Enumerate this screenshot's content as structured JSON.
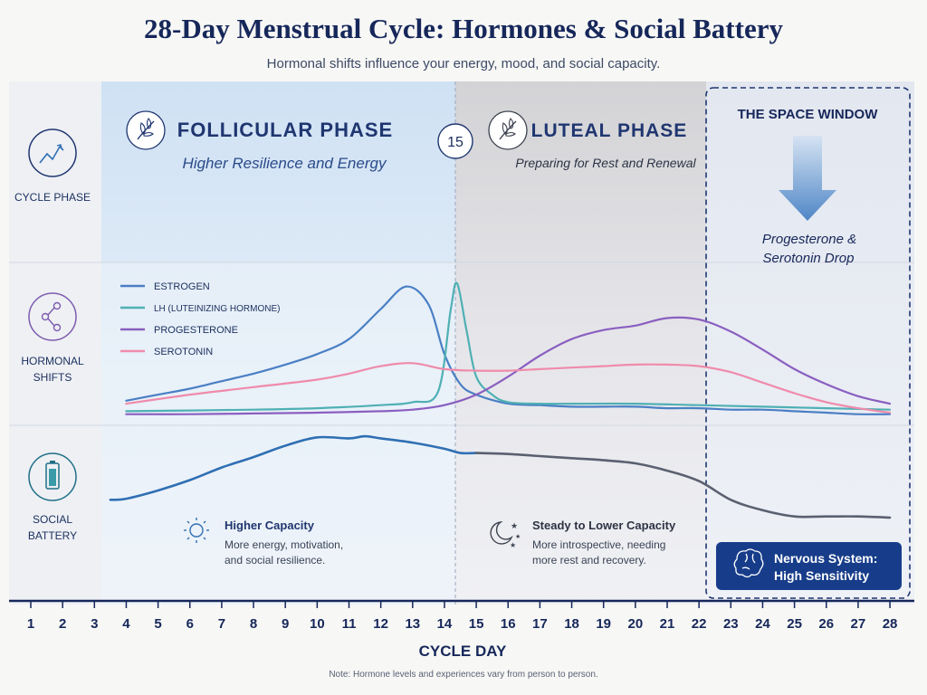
{
  "header": {
    "title": "28-Day Menstrual Cycle: Hormones & Social Battery",
    "subtitle": "Hormonal shifts influence your energy, mood, and social capacity."
  },
  "rows": {
    "cycle_phase": "CYCLE PHASE",
    "hormonal_shifts_1": "HORMONAL",
    "hormonal_shifts_2": "SHIFTS",
    "social_battery_1": "SOCIAL",
    "social_battery_2": "BATTERY"
  },
  "phases": {
    "follicular": {
      "title": "FOLLICULAR PHASE",
      "subtitle": "Higher Resilience and Energy",
      "icon": "leaf-icon"
    },
    "luteal": {
      "title": "LUTEAL PHASE",
      "subtitle": "Preparing for Rest and Renewal",
      "icon": "leaf-icon"
    },
    "ovulation_marker": "15"
  },
  "space_window": {
    "title": "THE SPACE WINDOW",
    "note_1": "Progesterone &",
    "note_2": "Serotonin Drop",
    "badge_1": "Nervous System:",
    "badge_2": "High Sensitivity",
    "badge_icon": "brain-icon"
  },
  "capacity": {
    "higher_title": "Higher Capacity",
    "higher_desc_1": "More energy, motivation,",
    "higher_desc_2": "and social resilience.",
    "higher_icon": "sun-icon",
    "lower_title": "Steady to Lower Capacity",
    "lower_desc_1": "More introspective, needing",
    "lower_desc_2": "more rest and recovery.",
    "lower_icon": "moon-stars-icon"
  },
  "xaxis": {
    "label": "CYCLE DAY"
  },
  "footnote": "Note: Hormone levels and experiences vary from person to person.",
  "colors": {
    "estrogen": "#4a7fc4",
    "lh": "#4fb0b4",
    "progesterone": "#8a5fc0",
    "serotonin": "#ef8bab",
    "battery_high": "#2f6fb3",
    "battery_low": "#5a6070",
    "navy": "#16275a"
  },
  "chart_data": {
    "type": "line",
    "x": [
      1,
      2,
      3,
      4,
      5,
      6,
      7,
      8,
      9,
      10,
      11,
      12,
      13,
      14,
      15,
      16,
      17,
      18,
      19,
      20,
      21,
      22,
      23,
      24,
      25,
      26,
      27,
      28
    ],
    "xlabel": "CYCLE DAY",
    "ylabel": "",
    "hormones": {
      "series": [
        {
          "name": "ESTROGEN",
          "color": "#4a7fc4",
          "points": [
            [
              4,
              14
            ],
            [
              5,
              18
            ],
            [
              6,
              22
            ],
            [
              7,
              27
            ],
            [
              8,
              32
            ],
            [
              9,
              38
            ],
            [
              10,
              45
            ],
            [
              11,
              55
            ],
            [
              12,
              75
            ],
            [
              12.8,
              90
            ],
            [
              13.5,
              78
            ],
            [
              14,
              45
            ],
            [
              14.5,
              25
            ],
            [
              15,
              18
            ],
            [
              16,
              12
            ],
            [
              17,
              11
            ],
            [
              18,
              10
            ],
            [
              19,
              10
            ],
            [
              20,
              10
            ],
            [
              21,
              9
            ],
            [
              22,
              9
            ],
            [
              23,
              8
            ],
            [
              24,
              8
            ],
            [
              25,
              7
            ],
            [
              26,
              6
            ],
            [
              27,
              5
            ],
            [
              28,
              5
            ]
          ]
        },
        {
          "name": "LH (LUTEINIZING HORMONE)",
          "color": "#4fb0b4",
          "points": [
            [
              4,
              7
            ],
            [
              6,
              7.5
            ],
            [
              8,
              8
            ],
            [
              10,
              9
            ],
            [
              12,
              11
            ],
            [
              13,
              13
            ],
            [
              13.8,
              20
            ],
            [
              14.2,
              75
            ],
            [
              14.4,
              92
            ],
            [
              14.7,
              60
            ],
            [
              15,
              30
            ],
            [
              15.5,
              18
            ],
            [
              16,
              13
            ],
            [
              17,
              12
            ],
            [
              18,
              12
            ],
            [
              20,
              12
            ],
            [
              22,
              11
            ],
            [
              24,
              10
            ],
            [
              26,
              9
            ],
            [
              28,
              8
            ]
          ]
        },
        {
          "name": "PROGESTERONE",
          "color": "#8a5fc0",
          "points": [
            [
              4,
              5
            ],
            [
              6,
              5
            ],
            [
              8,
              5.5
            ],
            [
              10,
              6
            ],
            [
              12,
              7
            ],
            [
              13,
              8
            ],
            [
              14,
              11
            ],
            [
              15,
              18
            ],
            [
              16,
              30
            ],
            [
              17,
              44
            ],
            [
              18,
              55
            ],
            [
              19,
              61
            ],
            [
              20,
              64
            ],
            [
              21,
              69
            ],
            [
              22,
              68
            ],
            [
              23,
              60
            ],
            [
              24,
              48
            ],
            [
              25,
              35
            ],
            [
              26,
              25
            ],
            [
              27,
              17
            ],
            [
              28,
              12
            ]
          ]
        },
        {
          "name": "SEROTONIN",
          "color": "#ef8bab",
          "points": [
            [
              4,
              12
            ],
            [
              6,
              18
            ],
            [
              8,
              23
            ],
            [
              10,
              28
            ],
            [
              11,
              32
            ],
            [
              12,
              37
            ],
            [
              13,
              39
            ],
            [
              14,
              35
            ],
            [
              15,
              34
            ],
            [
              16,
              34
            ],
            [
              17,
              35
            ],
            [
              18,
              36
            ],
            [
              19,
              37
            ],
            [
              20,
              38
            ],
            [
              21,
              38
            ],
            [
              22,
              37
            ],
            [
              23,
              33
            ],
            [
              24,
              26
            ],
            [
              25,
              19
            ],
            [
              26,
              13
            ],
            [
              27,
              9
            ],
            [
              28,
              6
            ]
          ]
        }
      ]
    },
    "social_battery": {
      "name": "Social Battery",
      "points": [
        [
          3.5,
          18
        ],
        [
          4,
          19
        ],
        [
          5,
          27
        ],
        [
          6,
          37
        ],
        [
          7,
          49
        ],
        [
          8,
          59
        ],
        [
          9,
          70
        ],
        [
          10,
          78
        ],
        [
          11,
          77
        ],
        [
          11.5,
          79
        ],
        [
          12,
          77
        ],
        [
          13,
          73
        ],
        [
          14,
          67
        ],
        [
          14.5,
          63
        ],
        [
          15,
          63
        ],
        [
          16,
          62
        ],
        [
          17,
          60
        ],
        [
          18,
          58
        ],
        [
          19,
          56
        ],
        [
          20,
          53
        ],
        [
          21,
          46
        ],
        [
          22,
          36
        ],
        [
          23,
          18
        ],
        [
          24,
          8
        ],
        [
          25,
          2
        ],
        [
          26,
          2
        ],
        [
          27,
          2
        ],
        [
          28,
          1
        ]
      ]
    }
  }
}
